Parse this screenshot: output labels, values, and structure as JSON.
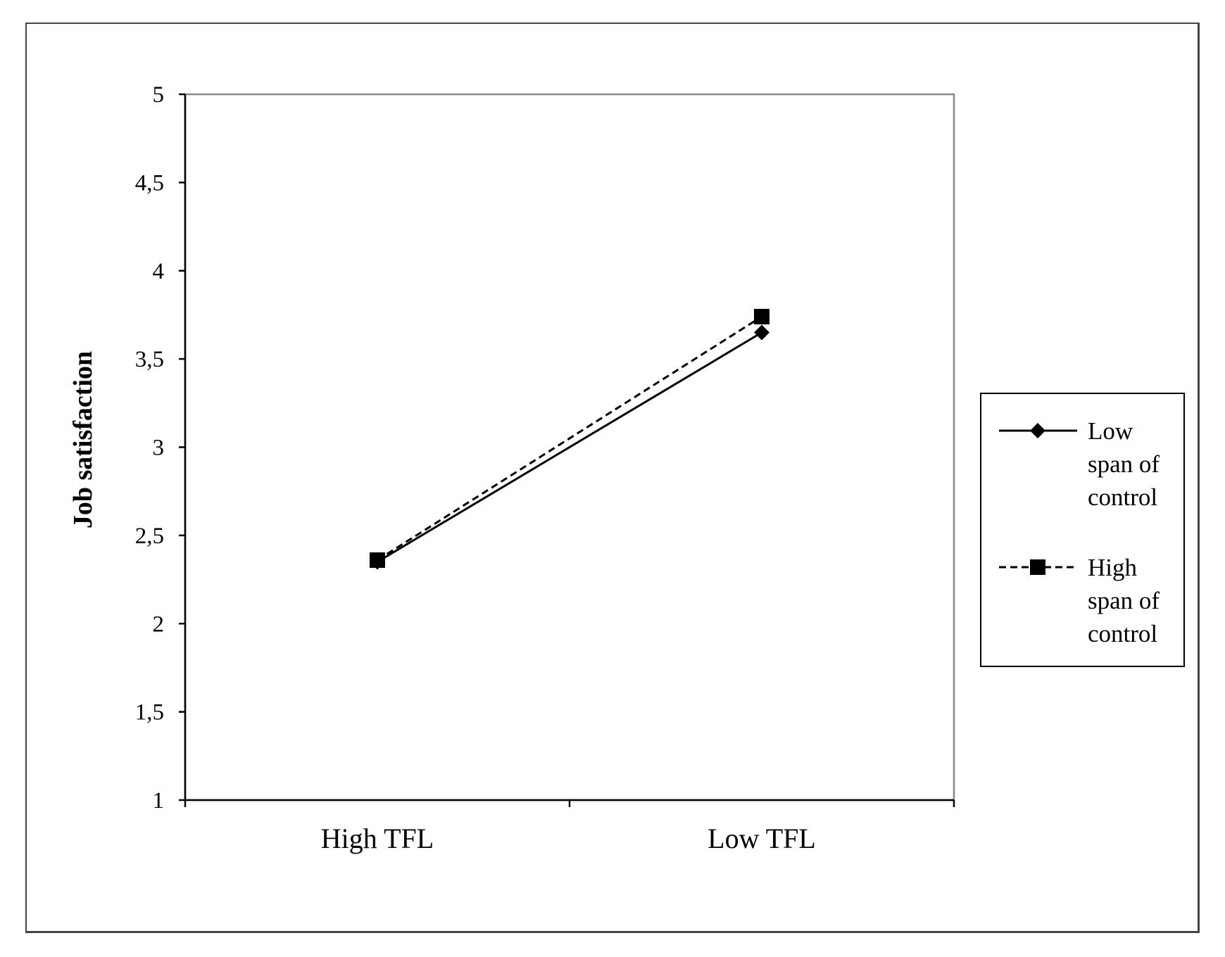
{
  "chart_data": {
    "type": "line",
    "title": "",
    "xlabel": "",
    "ylabel": "Job satisfaction",
    "categories": [
      "High TFL",
      "Low TFL"
    ],
    "ylim": [
      1,
      5
    ],
    "yticks": [
      "1",
      "1,5",
      "2",
      "2,5",
      "3",
      "3,5",
      "4",
      "4,5",
      "5"
    ],
    "ytick_values": [
      1,
      1.5,
      2,
      2.5,
      3,
      3.5,
      4,
      4.5,
      5
    ],
    "grid": false,
    "legend_position": "right",
    "series": [
      {
        "name": "Low span of control",
        "name_lines": [
          "Low",
          "span of",
          "control"
        ],
        "values": [
          2.35,
          3.65
        ],
        "line_style": "solid",
        "marker": "diamond",
        "color": "#000000"
      },
      {
        "name": "High span of control",
        "name_lines": [
          "High",
          "span of",
          "control"
        ],
        "values": [
          2.36,
          3.74
        ],
        "line_style": "dashed",
        "marker": "square",
        "color": "#000000"
      }
    ]
  }
}
